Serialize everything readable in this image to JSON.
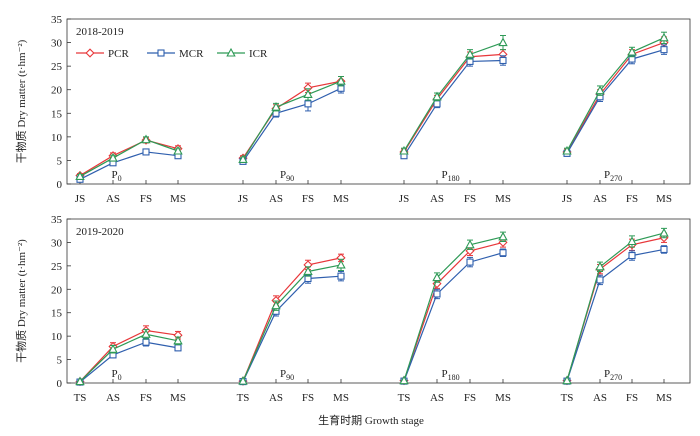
{
  "chart_data": {
    "type": "line",
    "xlabel": "生育时期 Growth stage",
    "ylabel": "干物质 Dry matter (t·hm⁻²)",
    "ylim": [
      0,
      35
    ],
    "yticks": [
      0,
      5,
      10,
      15,
      20,
      25,
      30,
      35
    ],
    "legend": {
      "placement": "top-left",
      "entries": [
        "PCR",
        "MCR",
        "ICR"
      ]
    },
    "series_style": {
      "PCR": {
        "color": "#e8373a",
        "marker": "diamond"
      },
      "MCR": {
        "color": "#2f5fae",
        "marker": "square"
      },
      "ICR": {
        "color": "#2e9a56",
        "marker": "triangle"
      }
    },
    "rows": [
      {
        "period": "2018-2019",
        "stages": [
          "JS",
          "AS",
          "FS",
          "MS"
        ],
        "panels": [
          {
            "label": "P",
            "sub": "0",
            "series": [
              {
                "name": "PCR",
                "values": [
                  1.8,
                  6.0,
                  9.3,
                  7.5
                ],
                "errors": [
                  0.4,
                  0.6,
                  0.6,
                  0.6
                ]
              },
              {
                "name": "MCR",
                "values": [
                  1.0,
                  4.5,
                  6.8,
                  6.0
                ],
                "errors": [
                  0.3,
                  0.5,
                  0.6,
                  0.5
                ]
              },
              {
                "name": "ICR",
                "values": [
                  1.6,
                  5.5,
                  9.4,
                  7.0
                ],
                "errors": [
                  0.4,
                  0.6,
                  0.6,
                  0.6
                ]
              }
            ]
          },
          {
            "label": "P",
            "sub": "90",
            "series": [
              {
                "name": "PCR",
                "values": [
                  5.5,
                  16.0,
                  20.4,
                  21.8
                ],
                "errors": [
                  0.5,
                  0.8,
                  1.0,
                  1.0
                ]
              },
              {
                "name": "MCR",
                "values": [
                  4.8,
                  15.0,
                  17.0,
                  20.3
                ],
                "errors": [
                  0.5,
                  0.8,
                  1.5,
                  1.0
                ]
              },
              {
                "name": "ICR",
                "values": [
                  5.2,
                  16.3,
                  19.0,
                  21.8
                ],
                "errors": [
                  0.5,
                  0.8,
                  1.2,
                  1.0
                ]
              }
            ]
          },
          {
            "label": "P",
            "sub": "180",
            "series": [
              {
                "name": "PCR",
                "values": [
                  6.8,
                  18.0,
                  27.0,
                  27.5
                ],
                "errors": [
                  0.6,
                  0.8,
                  1.0,
                  1.0
                ]
              },
              {
                "name": "MCR",
                "values": [
                  6.0,
                  17.0,
                  26.0,
                  26.2
                ],
                "errors": [
                  0.6,
                  0.8,
                  1.0,
                  1.0
                ]
              },
              {
                "name": "ICR",
                "values": [
                  7.0,
                  18.5,
                  27.5,
                  30.0
                ],
                "errors": [
                  0.6,
                  0.8,
                  1.0,
                  1.5
                ]
              }
            ]
          },
          {
            "label": "P",
            "sub": "270",
            "series": [
              {
                "name": "PCR",
                "values": [
                  6.8,
                  19.0,
                  27.5,
                  30.0
                ],
                "errors": [
                  0.6,
                  1.0,
                  1.0,
                  1.2
                ]
              },
              {
                "name": "MCR",
                "values": [
                  6.5,
                  18.5,
                  26.5,
                  28.5
                ],
                "errors": [
                  0.6,
                  1.0,
                  1.0,
                  1.0
                ]
              },
              {
                "name": "ICR",
                "values": [
                  7.0,
                  19.8,
                  28.0,
                  31.0
                ],
                "errors": [
                  0.6,
                  1.0,
                  1.0,
                  1.2
                ]
              }
            ]
          }
        ]
      },
      {
        "period": "2019-2020",
        "stages": [
          "TS",
          "AS",
          "FS",
          "MS"
        ],
        "panels": [
          {
            "label": "P",
            "sub": "0",
            "series": [
              {
                "name": "PCR",
                "values": [
                  0.3,
                  7.8,
                  11.2,
                  10.2
                ],
                "errors": [
                  0.1,
                  0.8,
                  1.0,
                  0.8
                ]
              },
              {
                "name": "MCR",
                "values": [
                  0.2,
                  6.0,
                  8.7,
                  7.5
                ],
                "errors": [
                  0.1,
                  0.6,
                  0.8,
                  0.6
                ]
              },
              {
                "name": "ICR",
                "values": [
                  0.3,
                  7.2,
                  10.4,
                  9.0
                ],
                "errors": [
                  0.1,
                  0.8,
                  1.0,
                  0.8
                ]
              }
            ]
          },
          {
            "label": "P",
            "sub": "90",
            "series": [
              {
                "name": "PCR",
                "values": [
                  0.4,
                  17.6,
                  25.2,
                  26.7
                ],
                "errors": [
                  0.1,
                  1.0,
                  1.0,
                  0.8
                ]
              },
              {
                "name": "MCR",
                "values": [
                  0.3,
                  15.3,
                  22.3,
                  22.8
                ],
                "errors": [
                  0.1,
                  1.0,
                  1.0,
                  1.0
                ]
              },
              {
                "name": "ICR",
                "values": [
                  0.4,
                  16.5,
                  23.8,
                  25.2
                ],
                "errors": [
                  0.1,
                  1.0,
                  1.0,
                  1.2
                ]
              }
            ]
          },
          {
            "label": "P",
            "sub": "180",
            "series": [
              {
                "name": "PCR",
                "values": [
                  0.5,
                  21.2,
                  28.2,
                  30.0
                ],
                "errors": [
                  0.1,
                  1.0,
                  1.0,
                  1.0
                ]
              },
              {
                "name": "MCR",
                "values": [
                  0.4,
                  19.0,
                  25.8,
                  27.8
                ],
                "errors": [
                  0.1,
                  1.0,
                  1.0,
                  0.8
                ]
              },
              {
                "name": "ICR",
                "values": [
                  0.5,
                  22.5,
                  29.5,
                  31.2
                ],
                "errors": [
                  0.1,
                  1.0,
                  1.0,
                  1.0
                ]
              }
            ]
          },
          {
            "label": "P",
            "sub": "270",
            "series": [
              {
                "name": "PCR",
                "values": [
                  0.5,
                  24.3,
                  29.5,
                  31.0
                ],
                "errors": [
                  0.1,
                  1.0,
                  1.2,
                  1.0
                ]
              },
              {
                "name": "MCR",
                "values": [
                  0.4,
                  22.0,
                  27.2,
                  28.5
                ],
                "errors": [
                  0.1,
                  1.0,
                  1.0,
                  0.8
                ]
              },
              {
                "name": "ICR",
                "values": [
                  0.5,
                  24.8,
                  30.2,
                  32.0
                ],
                "errors": [
                  0.1,
                  1.0,
                  1.2,
                  1.0
                ]
              }
            ]
          }
        ]
      }
    ]
  }
}
